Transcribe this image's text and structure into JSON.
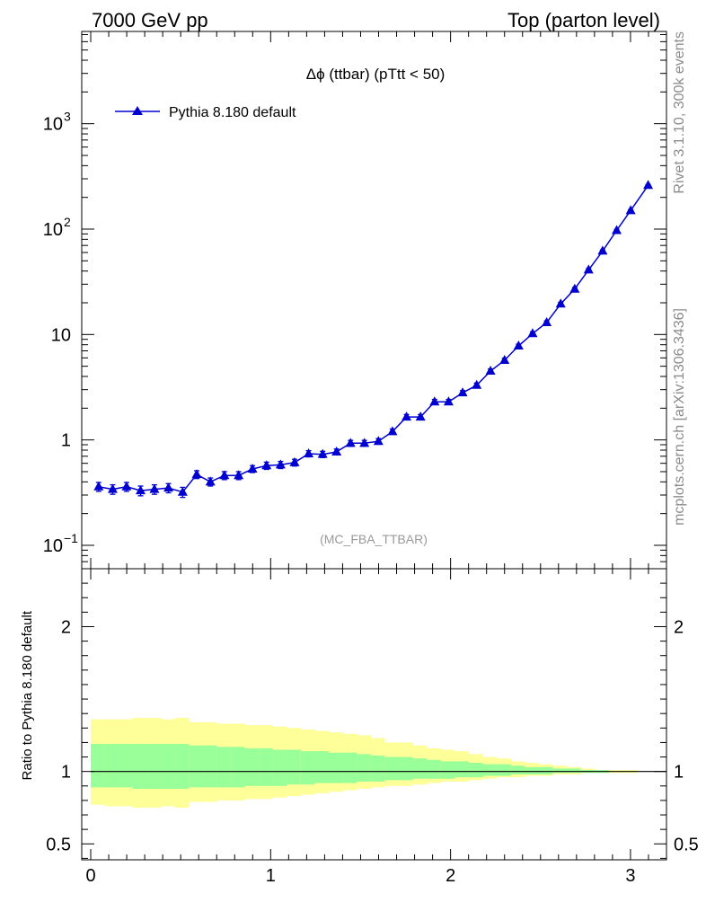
{
  "header": {
    "left": "7000 GeV pp",
    "right": "Top (parton level)"
  },
  "side_text": {
    "top": "Rivet 3.1.10,  300k events",
    "bottom": "mcplots.cern.ch [arXiv:1306.3436]"
  },
  "colors": {
    "series": "#0000d0",
    "band_inner": "#99ff99",
    "band_outer": "#ffff99"
  },
  "chart_data": [
    {
      "type": "line",
      "title": "Δϕ (ttbar) (pTtt < 50)",
      "watermark": "(MC_FBA_TTBAR)",
      "xlim": [
        -0.05,
        3.2
      ],
      "ylim": [
        0.06,
        7500
      ],
      "yscale": "log",
      "y_ticks": [
        {
          "value": 0.1,
          "label": "10",
          "sup": "−1"
        },
        {
          "value": 1,
          "label": "1",
          "sup": ""
        },
        {
          "value": 10,
          "label": "10",
          "sup": ""
        },
        {
          "value": 100,
          "label": "10",
          "sup": "2"
        },
        {
          "value": 1000,
          "label": "10",
          "sup": "3"
        }
      ],
      "legend": "top-left",
      "series": [
        {
          "name": "Pythia 8.180 default",
          "marker": "triangle",
          "x": [
            0.044,
            0.122,
            0.199,
            0.277,
            0.354,
            0.432,
            0.511,
            0.589,
            0.665,
            0.743,
            0.822,
            0.899,
            0.977,
            1.055,
            1.133,
            1.211,
            1.289,
            1.366,
            1.444,
            1.521,
            1.599,
            1.677,
            1.755,
            1.833,
            1.911,
            1.989,
            2.067,
            2.145,
            2.222,
            2.3,
            2.378,
            2.456,
            2.534,
            2.612,
            2.69,
            2.767,
            2.845,
            2.923,
            3.001,
            3.098
          ],
          "y": [
            0.36,
            0.34,
            0.36,
            0.33,
            0.34,
            0.35,
            0.32,
            0.47,
            0.4,
            0.46,
            0.46,
            0.53,
            0.57,
            0.58,
            0.61,
            0.74,
            0.73,
            0.77,
            0.93,
            0.93,
            0.97,
            1.2,
            1.65,
            1.65,
            2.3,
            2.3,
            2.8,
            3.3,
            4.5,
            5.7,
            7.8,
            10.2,
            13,
            19.5,
            27,
            41,
            62,
            97,
            150,
            260
          ],
          "yerr": [
            0.035,
            0.035,
            0.035,
            0.035,
            0.035,
            0.035,
            0.035,
            0.04,
            0.035,
            0.04,
            0.04,
            0.04,
            0.045,
            0.045,
            0.045,
            0.05,
            0.05,
            0.05,
            0.06,
            0.06,
            0.06,
            0.07,
            0.09,
            0.09,
            0.12,
            0.12,
            0.14,
            0.16,
            0.2,
            0.25,
            0.3,
            0.4,
            0.5,
            0.7,
            0.9,
            1.2,
            1.6,
            2.2,
            3,
            5
          ]
        }
      ]
    },
    {
      "type": "area",
      "ylabel": "Ratio to Pythia 8.180 default",
      "xlim": [
        -0.05,
        3.2
      ],
      "ylim": [
        0.39,
        2.4
      ],
      "x_ticks": [
        0,
        1,
        2,
        3
      ],
      "y_ticks": [
        0.5,
        1,
        2
      ],
      "reference_line": 1,
      "bins": [
        0.0,
        0.078,
        0.155,
        0.233,
        0.311,
        0.389,
        0.467,
        0.545,
        0.623,
        0.7,
        0.778,
        0.856,
        0.934,
        1.012,
        1.089,
        1.167,
        1.245,
        1.323,
        1.401,
        1.479,
        1.556,
        1.634,
        1.712,
        1.79,
        1.868,
        1.946,
        2.024,
        2.101,
        2.179,
        2.257,
        2.335,
        2.413,
        2.491,
        2.568,
        2.646,
        2.724,
        2.802,
        2.88,
        2.958,
        3.036,
        3.142
      ],
      "outer_up": [
        1.36,
        1.36,
        1.36,
        1.37,
        1.37,
        1.36,
        1.37,
        1.34,
        1.34,
        1.33,
        1.33,
        1.32,
        1.32,
        1.31,
        1.3,
        1.29,
        1.28,
        1.27,
        1.26,
        1.25,
        1.23,
        1.2,
        1.2,
        1.18,
        1.16,
        1.15,
        1.14,
        1.12,
        1.1,
        1.09,
        1.07,
        1.06,
        1.05,
        1.04,
        1.03,
        1.02,
        1.01,
        1.01,
        1.01,
        1.0
      ],
      "outer_low": [
        0.77,
        0.76,
        0.76,
        0.75,
        0.75,
        0.76,
        0.75,
        0.79,
        0.79,
        0.8,
        0.8,
        0.81,
        0.81,
        0.82,
        0.83,
        0.84,
        0.85,
        0.86,
        0.87,
        0.88,
        0.89,
        0.9,
        0.9,
        0.91,
        0.92,
        0.93,
        0.93,
        0.94,
        0.95,
        0.96,
        0.96,
        0.97,
        0.97,
        0.98,
        0.98,
        0.99,
        0.99,
        0.99,
        0.99,
        1.0
      ],
      "inner_up": [
        1.19,
        1.19,
        1.19,
        1.19,
        1.19,
        1.19,
        1.19,
        1.18,
        1.18,
        1.17,
        1.17,
        1.16,
        1.16,
        1.15,
        1.15,
        1.14,
        1.14,
        1.13,
        1.13,
        1.12,
        1.11,
        1.1,
        1.1,
        1.09,
        1.08,
        1.07,
        1.07,
        1.06,
        1.05,
        1.05,
        1.04,
        1.03,
        1.03,
        1.02,
        1.02,
        1.01,
        1.01,
        1.0,
        1.0,
        1.0
      ],
      "inner_low": [
        0.89,
        0.89,
        0.89,
        0.88,
        0.88,
        0.88,
        0.88,
        0.89,
        0.89,
        0.89,
        0.89,
        0.9,
        0.9,
        0.9,
        0.91,
        0.91,
        0.92,
        0.92,
        0.92,
        0.93,
        0.93,
        0.94,
        0.94,
        0.95,
        0.95,
        0.95,
        0.96,
        0.96,
        0.97,
        0.97,
        0.98,
        0.98,
        0.98,
        0.99,
        0.99,
        0.99,
        0.99,
        1.0,
        1.0,
        1.0
      ]
    }
  ]
}
